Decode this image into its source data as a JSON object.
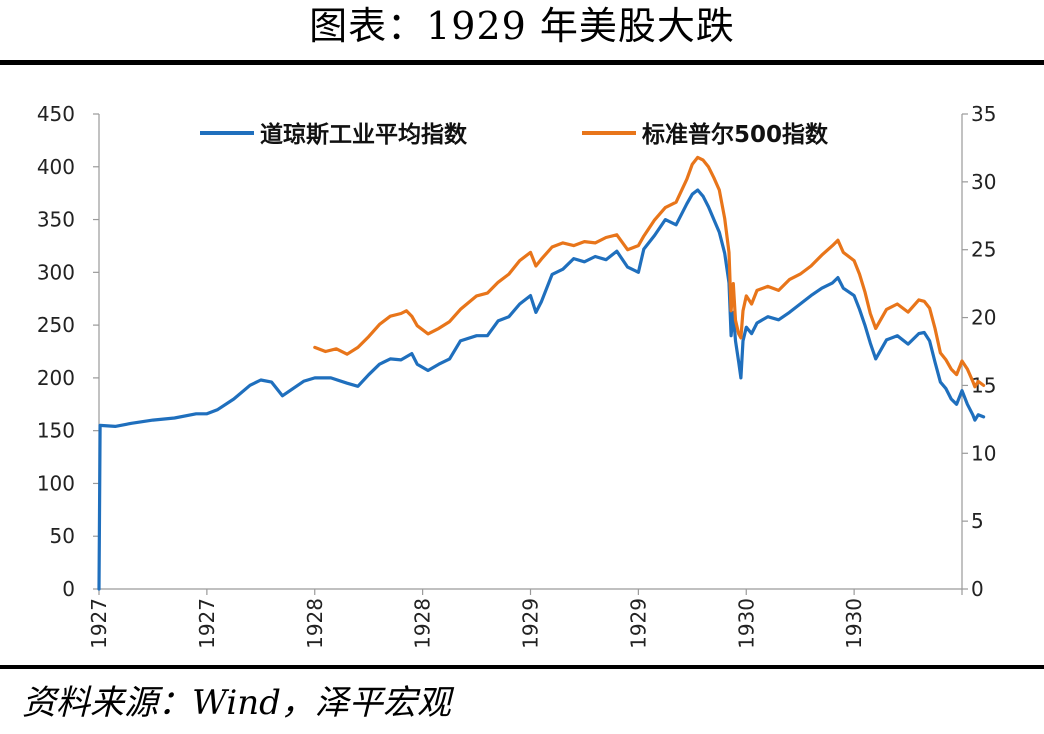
{
  "title": "图表：1929 年美股大跌",
  "source": "资料来源：Wind，泽平宏观",
  "chart_data": {
    "type": "line",
    "left_axis": {
      "ticks": [
        0,
        50,
        100,
        150,
        200,
        250,
        300,
        350,
        400,
        450
      ],
      "ylim": [
        0,
        450
      ]
    },
    "right_axis": {
      "ticks": [
        0,
        5,
        10,
        15,
        20,
        25,
        30,
        35
      ],
      "ylim": [
        0,
        35
      ]
    },
    "x_tick_labels": [
      "1927",
      "1927",
      "1928",
      "1928",
      "1929",
      "1929",
      "1930",
      "1930"
    ],
    "xlim": [
      0,
      8
    ],
    "legend_placement": "top",
    "series": [
      {
        "name": "道琼斯工业平均指数",
        "axis": "left",
        "color": "#1f6fbd",
        "points": [
          [
            0.0,
            0
          ],
          [
            0.01,
            155
          ],
          [
            0.15,
            154
          ],
          [
            0.3,
            157
          ],
          [
            0.5,
            160
          ],
          [
            0.7,
            162
          ],
          [
            0.9,
            166
          ],
          [
            1.0,
            166
          ],
          [
            1.1,
            170
          ],
          [
            1.25,
            180
          ],
          [
            1.4,
            193
          ],
          [
            1.5,
            198
          ],
          [
            1.6,
            196
          ],
          [
            1.7,
            183
          ],
          [
            1.8,
            190
          ],
          [
            1.9,
            197
          ],
          [
            2.0,
            200
          ],
          [
            2.15,
            200
          ],
          [
            2.3,
            195
          ],
          [
            2.4,
            192
          ],
          [
            2.5,
            203
          ],
          [
            2.6,
            213
          ],
          [
            2.7,
            218
          ],
          [
            2.8,
            217
          ],
          [
            2.9,
            223
          ],
          [
            2.95,
            213
          ],
          [
            3.05,
            207
          ],
          [
            3.15,
            213
          ],
          [
            3.25,
            218
          ],
          [
            3.35,
            235
          ],
          [
            3.5,
            240
          ],
          [
            3.6,
            240
          ],
          [
            3.7,
            254
          ],
          [
            3.8,
            258
          ],
          [
            3.9,
            270
          ],
          [
            4.0,
            278
          ],
          [
            4.05,
            262
          ],
          [
            4.1,
            272
          ],
          [
            4.2,
            298
          ],
          [
            4.3,
            303
          ],
          [
            4.4,
            313
          ],
          [
            4.5,
            310
          ],
          [
            4.6,
            315
          ],
          [
            4.7,
            312
          ],
          [
            4.8,
            320
          ],
          [
            4.9,
            305
          ],
          [
            5.0,
            300
          ],
          [
            5.05,
            322
          ],
          [
            5.15,
            335
          ],
          [
            5.25,
            350
          ],
          [
            5.35,
            345
          ],
          [
            5.45,
            365
          ],
          [
            5.5,
            374
          ],
          [
            5.55,
            378
          ],
          [
            5.6,
            372
          ],
          [
            5.65,
            362
          ],
          [
            5.7,
            350
          ],
          [
            5.75,
            338
          ],
          [
            5.8,
            318
          ],
          [
            5.84,
            290
          ],
          [
            5.86,
            240
          ],
          [
            5.88,
            262
          ],
          [
            5.9,
            235
          ],
          [
            5.93,
            215
          ],
          [
            5.95,
            200
          ],
          [
            5.97,
            235
          ],
          [
            6.0,
            248
          ],
          [
            6.05,
            242
          ],
          [
            6.1,
            252
          ],
          [
            6.2,
            258
          ],
          [
            6.3,
            255
          ],
          [
            6.4,
            262
          ],
          [
            6.5,
            270
          ],
          [
            6.6,
            278
          ],
          [
            6.7,
            285
          ],
          [
            6.8,
            290
          ],
          [
            6.85,
            295
          ],
          [
            6.9,
            285
          ],
          [
            7.0,
            278
          ],
          [
            7.05,
            265
          ],
          [
            7.1,
            250
          ],
          [
            7.15,
            233
          ],
          [
            7.2,
            218
          ],
          [
            7.3,
            236
          ],
          [
            7.4,
            240
          ],
          [
            7.5,
            232
          ],
          [
            7.6,
            242
          ],
          [
            7.65,
            243
          ],
          [
            7.7,
            235
          ],
          [
            7.75,
            215
          ],
          [
            7.8,
            196
          ],
          [
            7.85,
            190
          ],
          [
            7.9,
            180
          ],
          [
            7.95,
            175
          ],
          [
            8.0,
            188
          ],
          [
            8.05,
            175
          ],
          [
            8.1,
            165
          ],
          [
            8.12,
            160
          ],
          [
            8.15,
            165
          ],
          [
            8.2,
            163
          ]
        ]
      },
      {
        "name": "标准普尔500指数",
        "axis": "right",
        "color": "#e8751a",
        "points": [
          [
            2.0,
            17.8
          ],
          [
            2.1,
            17.5
          ],
          [
            2.2,
            17.7
          ],
          [
            2.3,
            17.3
          ],
          [
            2.4,
            17.8
          ],
          [
            2.5,
            18.6
          ],
          [
            2.6,
            19.5
          ],
          [
            2.7,
            20.1
          ],
          [
            2.8,
            20.3
          ],
          [
            2.85,
            20.5
          ],
          [
            2.9,
            20.1
          ],
          [
            2.95,
            19.4
          ],
          [
            3.05,
            18.8
          ],
          [
            3.15,
            19.2
          ],
          [
            3.25,
            19.7
          ],
          [
            3.35,
            20.6
          ],
          [
            3.5,
            21.6
          ],
          [
            3.6,
            21.8
          ],
          [
            3.7,
            22.6
          ],
          [
            3.8,
            23.2
          ],
          [
            3.9,
            24.2
          ],
          [
            4.0,
            24.8
          ],
          [
            4.05,
            23.8
          ],
          [
            4.1,
            24.3
          ],
          [
            4.2,
            25.2
          ],
          [
            4.3,
            25.5
          ],
          [
            4.4,
            25.3
          ],
          [
            4.5,
            25.6
          ],
          [
            4.6,
            25.5
          ],
          [
            4.7,
            25.9
          ],
          [
            4.8,
            26.1
          ],
          [
            4.9,
            25.0
          ],
          [
            5.0,
            25.3
          ],
          [
            5.05,
            26.0
          ],
          [
            5.15,
            27.2
          ],
          [
            5.25,
            28.1
          ],
          [
            5.35,
            28.5
          ],
          [
            5.45,
            30.2
          ],
          [
            5.5,
            31.3
          ],
          [
            5.55,
            31.8
          ],
          [
            5.6,
            31.6
          ],
          [
            5.65,
            31.1
          ],
          [
            5.7,
            30.3
          ],
          [
            5.75,
            29.4
          ],
          [
            5.8,
            27.3
          ],
          [
            5.84,
            24.8
          ],
          [
            5.86,
            20.5
          ],
          [
            5.88,
            22.5
          ],
          [
            5.9,
            19.8
          ],
          [
            5.93,
            18.8
          ],
          [
            5.95,
            18.5
          ],
          [
            5.97,
            20.5
          ],
          [
            6.0,
            21.6
          ],
          [
            6.05,
            21.0
          ],
          [
            6.1,
            22.0
          ],
          [
            6.2,
            22.3
          ],
          [
            6.3,
            22.0
          ],
          [
            6.4,
            22.8
          ],
          [
            6.5,
            23.2
          ],
          [
            6.6,
            23.8
          ],
          [
            6.7,
            24.6
          ],
          [
            6.8,
            25.3
          ],
          [
            6.85,
            25.7
          ],
          [
            6.9,
            24.8
          ],
          [
            7.0,
            24.2
          ],
          [
            7.05,
            23.2
          ],
          [
            7.1,
            21.9
          ],
          [
            7.15,
            20.3
          ],
          [
            7.2,
            19.2
          ],
          [
            7.3,
            20.6
          ],
          [
            7.4,
            21.0
          ],
          [
            7.5,
            20.4
          ],
          [
            7.6,
            21.3
          ],
          [
            7.65,
            21.2
          ],
          [
            7.7,
            20.7
          ],
          [
            7.75,
            19.2
          ],
          [
            7.8,
            17.4
          ],
          [
            7.85,
            16.9
          ],
          [
            7.9,
            16.2
          ],
          [
            7.95,
            15.8
          ],
          [
            8.0,
            16.8
          ],
          [
            8.05,
            16.2
          ],
          [
            8.1,
            15.3
          ],
          [
            8.12,
            14.9
          ],
          [
            8.15,
            15.3
          ],
          [
            8.2,
            15.0
          ]
        ]
      }
    ]
  }
}
